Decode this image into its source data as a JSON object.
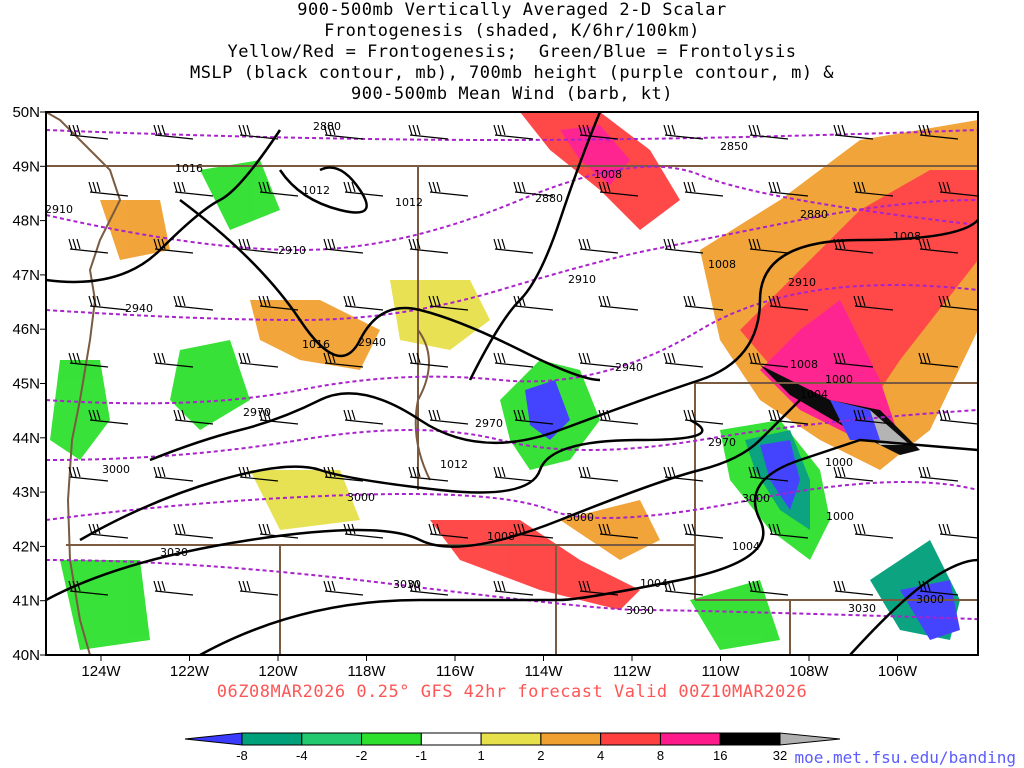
{
  "title_lines": [
    "900-500mb Vertically Averaged 2-D Scalar",
    "Frontogenesis (shaded, K/6hr/100km)",
    "Yellow/Red = Frontogenesis;  Green/Blue = Frontolysis",
    "MSLP (black contour, mb), 700mb height (purple contour, m) &",
    "900-500mb Mean Wind (barb, kt)"
  ],
  "lat_labels": [
    "50N",
    "49N",
    "48N",
    "47N",
    "46N",
    "45N",
    "44N",
    "43N",
    "42N",
    "41N",
    "40N"
  ],
  "lon_labels": [
    "124W",
    "122W",
    "120W",
    "118W",
    "116W",
    "114W",
    "112W",
    "110W",
    "108W",
    "106W"
  ],
  "footer": "06Z08MAR2026 0.25° GFS 42hr forecast Valid 00Z10MAR2026",
  "url": "moe.met.fsu.edu/banding",
  "colorbar": {
    "labels": [
      "-8",
      "-4",
      "-2",
      "-1",
      "1",
      "2",
      "4",
      "8",
      "16",
      "32"
    ],
    "colors": [
      "#3b3bff",
      "#00a07a",
      "#22c96e",
      "#2ee02e",
      "#ffffff",
      "#e6e04a",
      "#f0a030",
      "#ff4040",
      "#ff1a8c",
      "#000000",
      "#b0b0b0"
    ]
  },
  "mslp_labels": [
    "1016",
    "1012",
    "1012",
    "1008",
    "1008",
    "1008",
    "1008",
    "1004",
    "1000",
    "1016",
    "1012",
    "1008",
    "1004",
    "1004",
    "1000",
    "1000"
  ],
  "height_labels": [
    "2880",
    "2850",
    "2880",
    "2880",
    "2910",
    "2910",
    "2910",
    "2910",
    "2940",
    "2940",
    "2940",
    "2970",
    "2970",
    "2970",
    "3000",
    "3000",
    "3000",
    "3000",
    "3030",
    "3030",
    "3030",
    "3030",
    "3000",
    "2910"
  ],
  "colors": {
    "state_border": "#7a5a40",
    "mslp": "#000000",
    "height": "#aa22cc"
  }
}
